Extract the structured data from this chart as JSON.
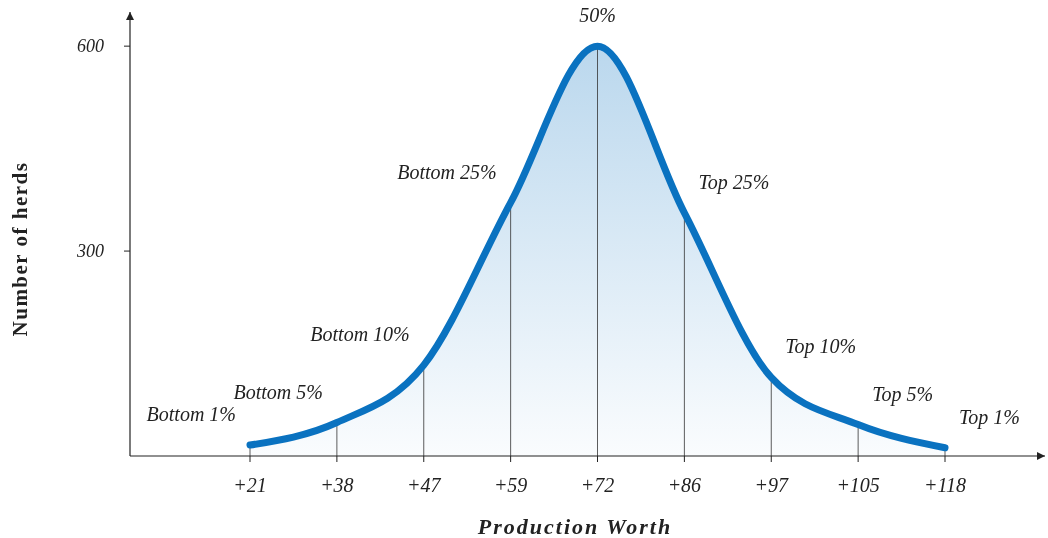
{
  "chart_data": {
    "type": "area",
    "xlabel": "Production Worth",
    "ylabel": "Number of herds",
    "categories": [
      "+21",
      "+38",
      "+47",
      "+59",
      "+72",
      "+86",
      "+97",
      "+105",
      "+118"
    ],
    "ylim": [
      0,
      650
    ],
    "yticks": [
      300,
      600
    ],
    "grid": "x",
    "series": [
      {
        "color": "#0a72c0",
        "values": [
          16,
          49,
          133,
          371,
          600,
          356,
          115,
          46,
          12
        ]
      }
    ],
    "annotations": [
      {
        "text": "Bottom 1%",
        "x": "+21",
        "y": 16
      },
      {
        "text": "Bottom 5%",
        "x": "+38",
        "y": 49
      },
      {
        "text": "Bottom 10%",
        "x": "+47",
        "y": 133
      },
      {
        "text": "Bottom 25%",
        "x": "+59",
        "y": 371
      },
      {
        "text": "50%",
        "x": "+72",
        "y": 600
      },
      {
        "text": "Top 25%",
        "x": "+86",
        "y": 356
      },
      {
        "text": "Top 10%",
        "x": "+97",
        "y": 115
      },
      {
        "text": "Top 5%",
        "x": "+105",
        "y": 46
      },
      {
        "text": "Top 1%",
        "x": "+118",
        "y": 12
      }
    ]
  }
}
